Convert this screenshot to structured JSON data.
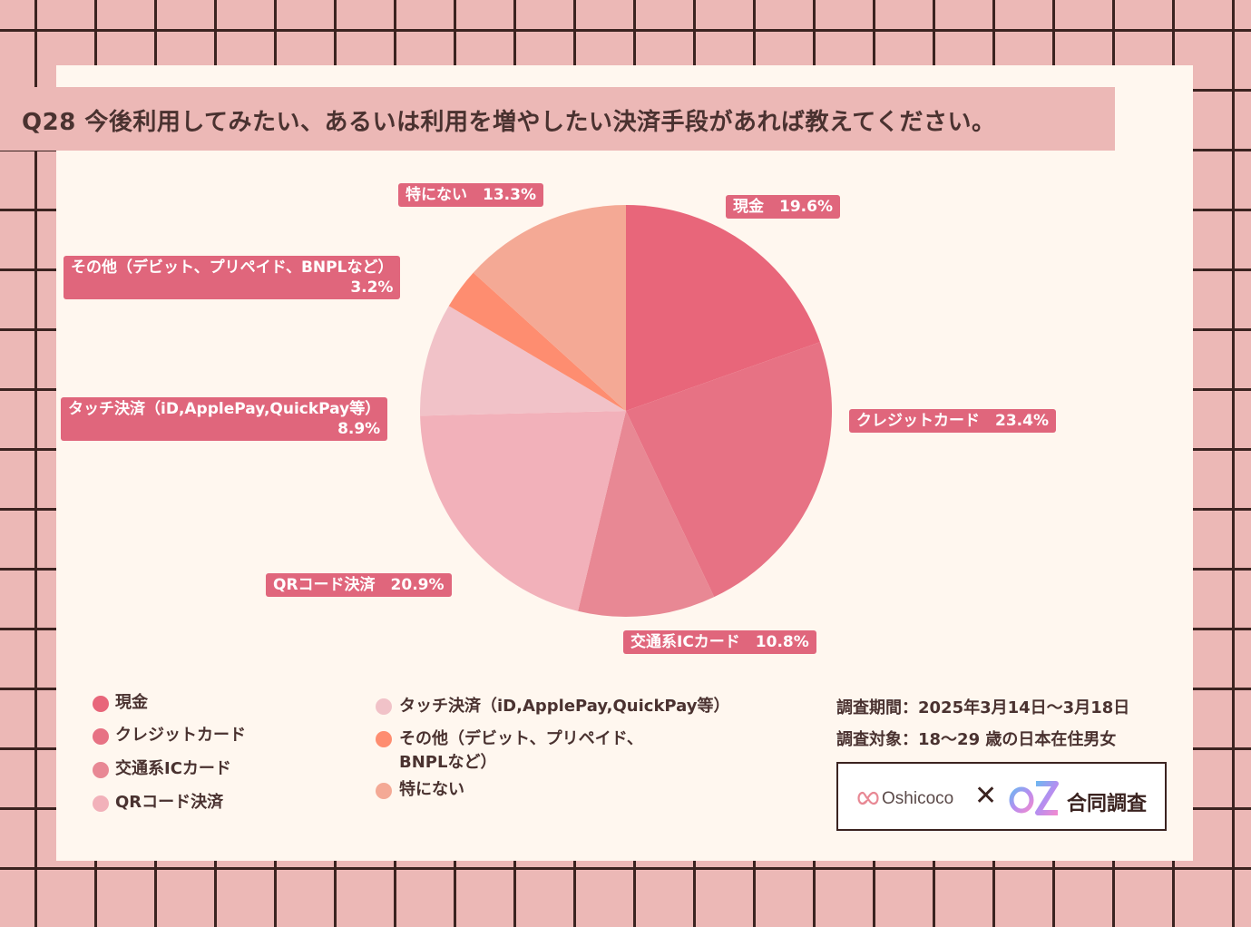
{
  "title": "Q28 今後利用してみたい、あるいは利用を増やしたい決済手段があれば教えてください。",
  "chart_data": {
    "type": "pie",
    "title": "Q28 今後利用してみたい、あるいは利用を増やしたい決済手段があれば教えてください。",
    "slices": [
      {
        "name": "現金",
        "value": 19.6,
        "color": "#e8667a"
      },
      {
        "name": "クレジットカード",
        "value": 23.4,
        "color": "#e77284"
      },
      {
        "name": "交通系ICカード",
        "value": 10.8,
        "color": "#e88894"
      },
      {
        "name": "QRコード決済",
        "value": 20.9,
        "color": "#f2b1ba"
      },
      {
        "name": "タッチ決済（iD,ApplePay,QuickPay等）",
        "value": 8.9,
        "color": "#f1c2c8"
      },
      {
        "name": "その他（デビット、プリペイド、BNPLなど）",
        "value": 3.2,
        "color": "#fe8d70"
      },
      {
        "name": "特にない",
        "value": 13.3,
        "color": "#f4a995"
      }
    ]
  },
  "labels": {
    "cash": "現金　19.6%",
    "credit": "クレジットカード　23.4%",
    "ic": "交通系ICカード　10.8%",
    "qr": "QRコード決済　20.9%",
    "touch_l1": "タッチ決済（iD,ApplePay,QuickPay等）",
    "touch_l2": "8.9%",
    "other_l1": "その他（デビット、プリペイド、BNPLなど）",
    "other_l2": "3.2%",
    "none": "特にない　13.3%"
  },
  "legend": {
    "cash": "現金",
    "credit": "クレジットカード",
    "ic": "交通系ICカード",
    "qr": "QRコード決済",
    "touch": "タッチ決済（iD,ApplePay,QuickPay等）",
    "other_l1": "その他（デビット、プリペイド、",
    "other_l2": "BNPLなど）",
    "none": "特にない"
  },
  "info": {
    "period": "調査期間：2025年3月14日～3月18日",
    "target": "調査対象：18～29 歳の日本在住男女"
  },
  "logo": {
    "oshicoco": "Oshicoco",
    "x": "✕",
    "joint": "合同調査"
  }
}
